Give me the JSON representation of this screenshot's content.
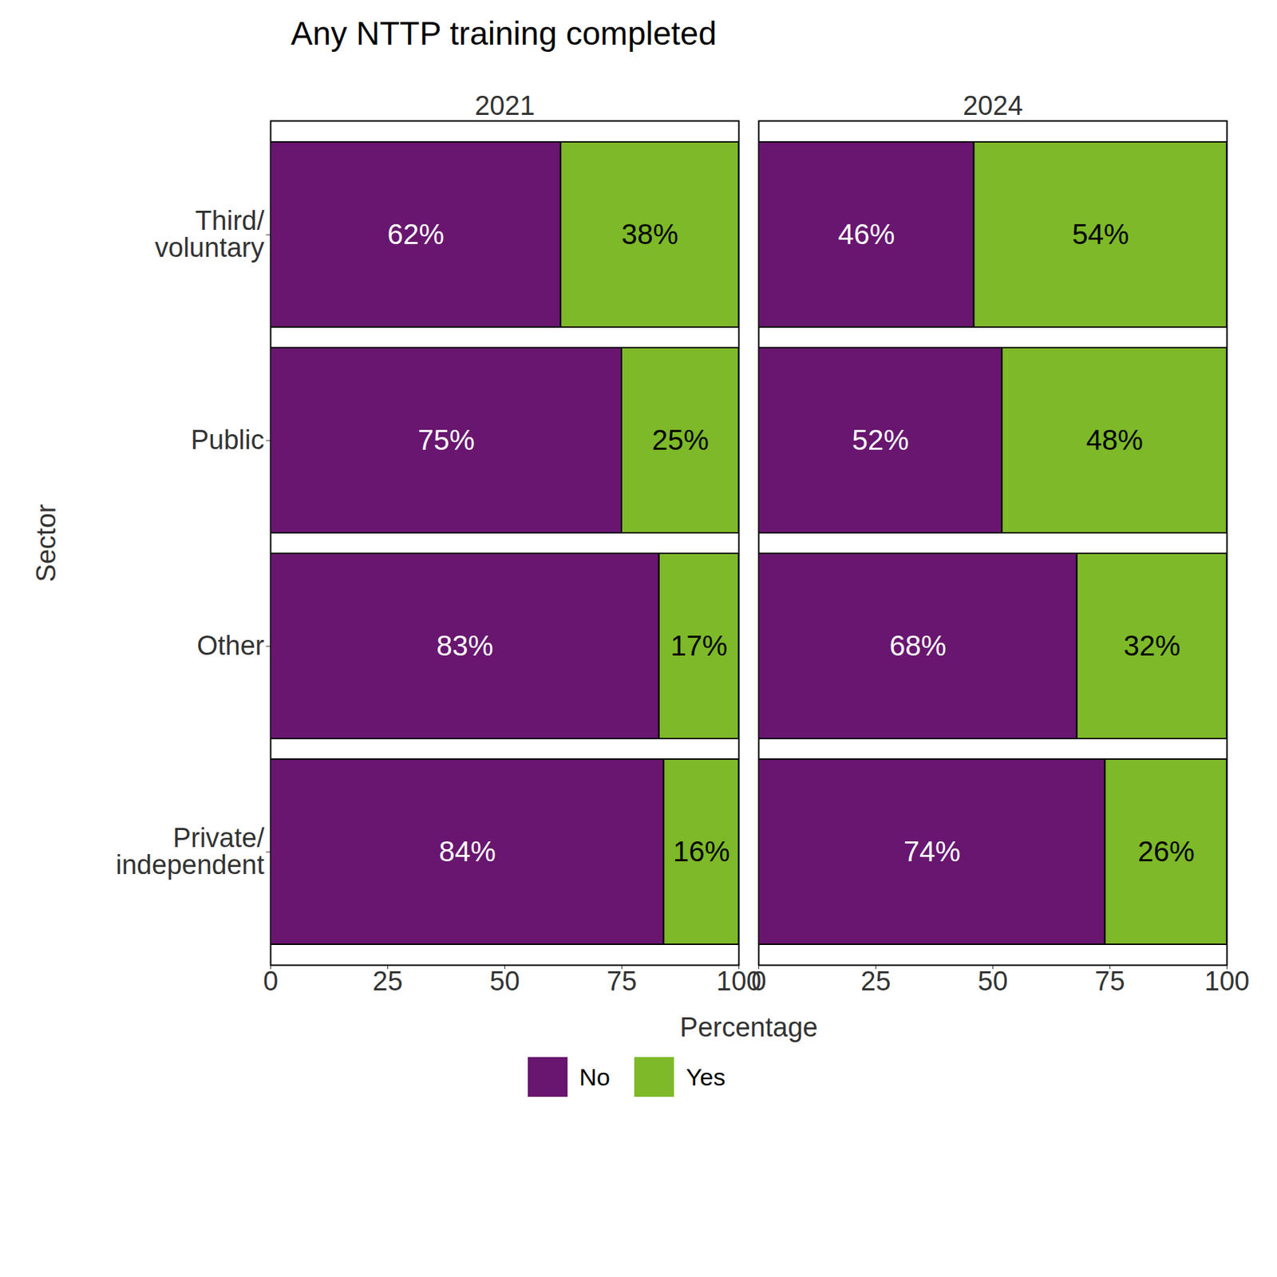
{
  "chart_data": {
    "type": "bar",
    "title": "Any NTTP training completed",
    "orientation": "horizontal",
    "stacked": true,
    "data_labels": true,
    "legend": "bottom",
    "x_label": "Percentage",
    "y_label": "Sector",
    "xlim": [
      0,
      100
    ],
    "xticks": [
      0,
      25,
      50,
      75,
      100
    ],
    "panels": [
      "2021",
      "2024"
    ],
    "categories": [
      "Third/\nvoluntary",
      "Public",
      "Other",
      "Private/\nindependent"
    ],
    "series": [
      {
        "name": "No",
        "color": "#68166f",
        "values": [
          [
            62,
            75,
            83,
            84
          ],
          [
            46,
            52,
            68,
            74
          ]
        ],
        "value_labels": [
          [
            "62%",
            "75%",
            "83%",
            "84%"
          ],
          [
            "46%",
            "52%",
            "68%",
            "74%"
          ]
        ]
      },
      {
        "name": "Yes",
        "color": "#7db928",
        "values": [
          [
            38,
            25,
            17,
            16
          ],
          [
            54,
            48,
            32,
            26
          ]
        ],
        "value_labels": [
          [
            "38%",
            "25%",
            "17%",
            "16%"
          ],
          [
            "54%",
            "48%",
            "32%",
            "26%"
          ]
        ]
      }
    ]
  }
}
